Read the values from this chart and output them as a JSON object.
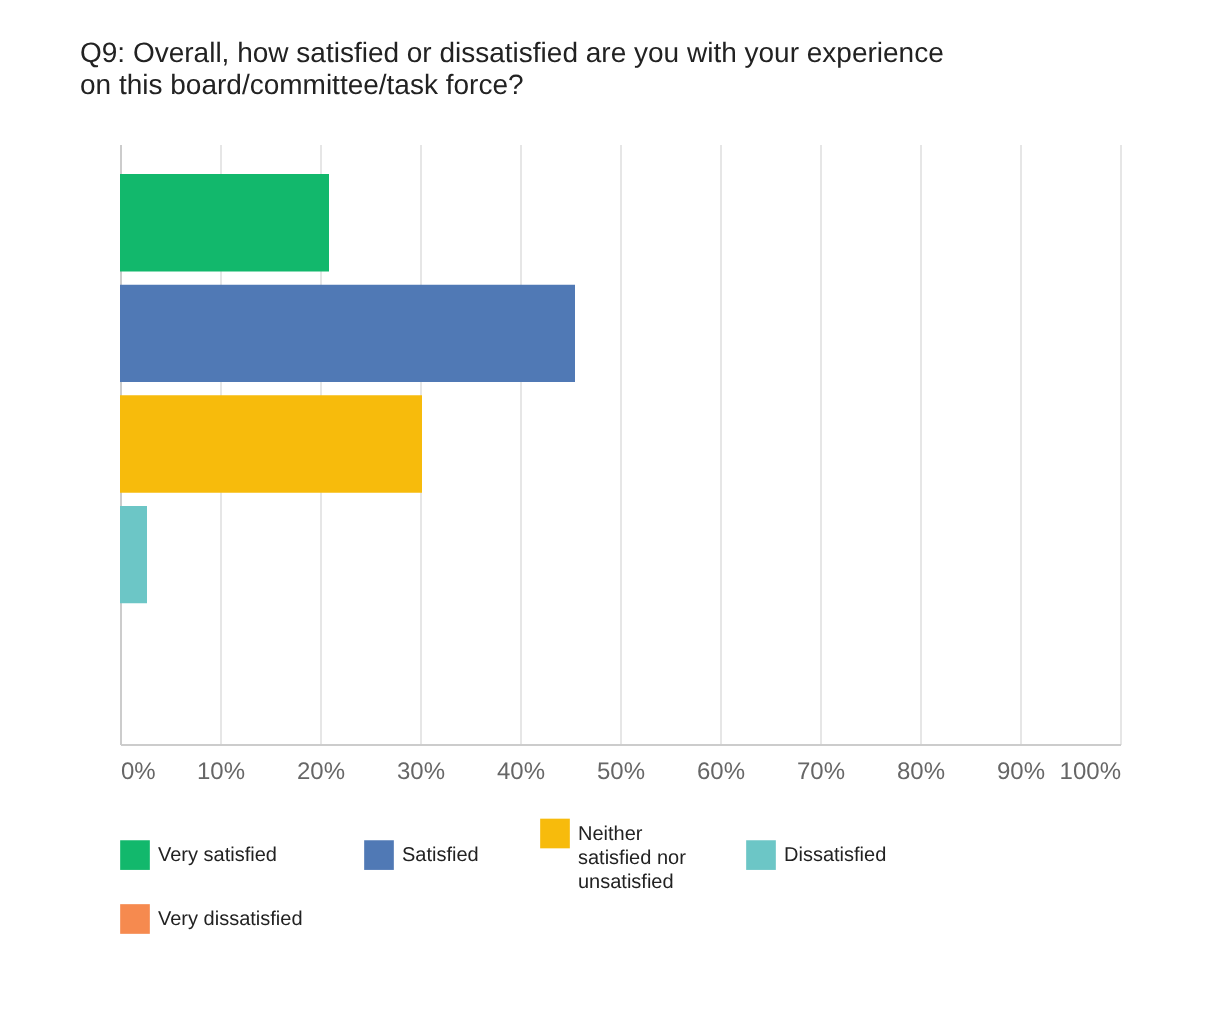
{
  "chart_data": {
    "type": "bar",
    "orientation": "horizontal",
    "title": "Q9:  Overall, how satisfied or dissatisfied are you with your experience on this board/committee/task force?",
    "categories": [
      null
    ],
    "series": [
      {
        "name": "Very satisfied",
        "color": "#12b86c",
        "values": [
          20.9
        ]
      },
      {
        "name": "Satisfied",
        "color": "#5079b5",
        "values": [
          45.5
        ]
      },
      {
        "name": "Neither satisfied nor unsatisfied",
        "color": "#f7bb0c",
        "values": [
          30.2
        ]
      },
      {
        "name": "Dissatisfied",
        "color": "#6cc6c6",
        "values": [
          2.7
        ]
      },
      {
        "name": "Very dissatisfied",
        "color": "#f68a4f",
        "values": [
          0
        ]
      }
    ],
    "xlim": [
      0,
      100
    ],
    "xticks": [
      {
        "value": 0,
        "label": "0%"
      },
      {
        "value": 10,
        "label": "10%"
      },
      {
        "value": 20,
        "label": "20%"
      },
      {
        "value": 30,
        "label": "30%"
      },
      {
        "value": 40,
        "label": "40%"
      },
      {
        "value": 50,
        "label": "50%"
      },
      {
        "value": 60,
        "label": "60%"
      },
      {
        "value": 70,
        "label": "70%"
      },
      {
        "value": 80,
        "label": "80%"
      },
      {
        "value": 90,
        "label": "90%"
      },
      {
        "value": 100,
        "label": "100%"
      }
    ],
    "grid": "x",
    "legend": "bottom",
    "tick_labels": "x"
  }
}
